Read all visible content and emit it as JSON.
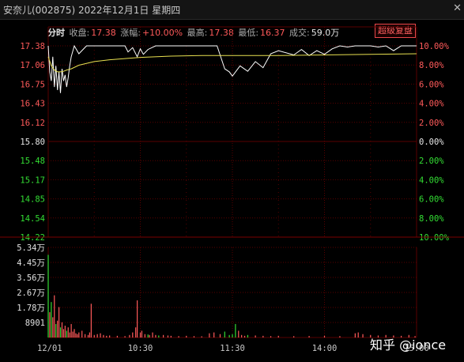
{
  "window": {
    "title": "安奈儿(002875)  2022年12月1日  星期四",
    "close_label": "✕"
  },
  "info": {
    "tab": "分时",
    "close_label": "收盘:",
    "close_value": "17.38",
    "change_label": "涨幅:",
    "change_value": "+10.00%",
    "high_label": "最高:",
    "high_value": "17.38",
    "low_label": "最低:",
    "low_value": "16.37",
    "volume_label": "成交:",
    "volume_value": "59.0万",
    "super_button": "超级复盘"
  },
  "watermark": "知乎 @ionce",
  "colors": {
    "up": "#ff5a5a",
    "down": "#33dd33",
    "flat": "#e6e6e6",
    "price_line": "#ffffff",
    "avg_line": "#e8e050",
    "grid": "#5a0000"
  },
  "chart_data": [
    {
      "type": "line",
      "base_price": 15.8,
      "ylim": [
        14.22,
        17.38
      ],
      "y_ticks_left": [
        "17.38",
        "17.06",
        "16.75",
        "16.43",
        "16.12",
        "15.80",
        "15.48",
        "15.17",
        "14.85",
        "14.54",
        "14.22"
      ],
      "y_ticks_right": [
        "10.00%",
        "8.00%",
        "6.00%",
        "4.00%",
        "2.00%",
        "0.00%",
        "2.00%",
        "4.00%",
        "6.00%",
        "8.00%",
        "10.00%"
      ],
      "x_ticks": [
        "12/01",
        "10:30",
        "11:30",
        "14:00",
        "15:00"
      ],
      "series": [
        {
          "role": "price",
          "x": [
            0,
            1,
            2,
            3,
            4,
            5,
            6,
            7,
            8,
            9,
            10,
            11,
            12,
            13,
            14,
            15,
            17,
            20,
            25,
            30,
            40,
            45,
            50,
            52,
            55,
            58,
            60,
            62,
            65,
            70,
            75,
            80,
            90,
            100,
            110,
            115,
            118,
            120,
            125,
            130,
            135,
            140,
            145,
            150,
            160,
            165,
            170,
            175,
            180,
            185,
            190,
            195,
            200,
            210,
            215,
            220,
            225,
            230,
            235,
            240
          ],
          "values": [
            17.38,
            16.95,
            16.8,
            17.2,
            16.7,
            17.05,
            16.65,
            16.95,
            16.6,
            17.0,
            16.8,
            16.9,
            16.7,
            16.85,
            17.05,
            17.2,
            17.38,
            17.25,
            17.38,
            17.38,
            17.38,
            17.38,
            17.38,
            17.28,
            17.35,
            17.2,
            17.33,
            17.24,
            17.32,
            17.38,
            17.38,
            17.38,
            17.38,
            17.38,
            17.38,
            17.0,
            16.95,
            16.88,
            17.05,
            16.96,
            17.12,
            17.02,
            17.25,
            17.3,
            17.23,
            17.32,
            17.22,
            17.3,
            17.24,
            17.33,
            17.38,
            17.36,
            17.38,
            17.38,
            17.36,
            17.38,
            17.3,
            17.38,
            17.38,
            17.38
          ]
        },
        {
          "role": "average",
          "x": [
            0,
            2,
            4,
            6,
            8,
            10,
            12,
            15,
            20,
            30,
            40,
            60,
            80,
            100,
            120,
            150,
            180,
            210,
            240
          ],
          "values": [
            17.2,
            17.05,
            16.98,
            16.95,
            16.95,
            16.96,
            16.98,
            17.0,
            17.06,
            17.12,
            17.15,
            17.19,
            17.21,
            17.22,
            17.22,
            17.22,
            17.23,
            17.24,
            17.25
          ]
        }
      ]
    },
    {
      "type": "bar",
      "ylim": [
        0,
        53400
      ],
      "y_ticks": [
        "5.34万",
        "4.45万",
        "3.56万",
        "2.67万",
        "1.78万",
        "8901"
      ],
      "bars": [
        {
          "x": 0,
          "v": 49000,
          "c": "down"
        },
        {
          "x": 1,
          "v": 15000,
          "c": "up"
        },
        {
          "x": 2,
          "v": 21000,
          "c": "down"
        },
        {
          "x": 3,
          "v": 12000,
          "c": "up"
        },
        {
          "x": 4,
          "v": 25000,
          "c": "up"
        },
        {
          "x": 5,
          "v": 8000,
          "c": "down"
        },
        {
          "x": 6,
          "v": 10000,
          "c": "up"
        },
        {
          "x": 7,
          "v": 18000,
          "c": "up"
        },
        {
          "x": 8,
          "v": 6000,
          "c": "down"
        },
        {
          "x": 9,
          "v": 9000,
          "c": "up"
        },
        {
          "x": 10,
          "v": 5000,
          "c": "up"
        },
        {
          "x": 11,
          "v": 7000,
          "c": "up"
        },
        {
          "x": 12,
          "v": 4000,
          "c": "down"
        },
        {
          "x": 13,
          "v": 6000,
          "c": "up"
        },
        {
          "x": 14,
          "v": 3000,
          "c": "up"
        },
        {
          "x": 15,
          "v": 8000,
          "c": "up"
        },
        {
          "x": 16,
          "v": 3500,
          "c": "up"
        },
        {
          "x": 17,
          "v": 5000,
          "c": "up"
        },
        {
          "x": 18,
          "v": 2500,
          "c": "up"
        },
        {
          "x": 19,
          "v": 2000,
          "c": "up"
        },
        {
          "x": 20,
          "v": 3000,
          "c": "up"
        },
        {
          "x": 22,
          "v": 4000,
          "c": "up"
        },
        {
          "x": 24,
          "v": 2000,
          "c": "up"
        },
        {
          "x": 26,
          "v": 1500,
          "c": "up"
        },
        {
          "x": 27,
          "v": 3000,
          "c": "up"
        },
        {
          "x": 28,
          "v": 20000,
          "c": "up"
        },
        {
          "x": 30,
          "v": 1500,
          "c": "up"
        },
        {
          "x": 32,
          "v": 2000,
          "c": "up"
        },
        {
          "x": 34,
          "v": 2500,
          "c": "up"
        },
        {
          "x": 36,
          "v": 1500,
          "c": "up"
        },
        {
          "x": 38,
          "v": 1000,
          "c": "up"
        },
        {
          "x": 40,
          "v": 1200,
          "c": "up"
        },
        {
          "x": 45,
          "v": 1000,
          "c": "up"
        },
        {
          "x": 50,
          "v": 800,
          "c": "up"
        },
        {
          "x": 53,
          "v": 1500,
          "c": "up"
        },
        {
          "x": 55,
          "v": 3000,
          "c": "up"
        },
        {
          "x": 57,
          "v": 6000,
          "c": "up"
        },
        {
          "x": 58,
          "v": 22000,
          "c": "up"
        },
        {
          "x": 60,
          "v": 3000,
          "c": "up"
        },
        {
          "x": 61,
          "v": 4000,
          "c": "up"
        },
        {
          "x": 63,
          "v": 2000,
          "c": "up"
        },
        {
          "x": 65,
          "v": 1800,
          "c": "down"
        },
        {
          "x": 66,
          "v": 1500,
          "c": "up"
        },
        {
          "x": 68,
          "v": 3000,
          "c": "up"
        },
        {
          "x": 70,
          "v": 1500,
          "c": "up"
        },
        {
          "x": 72,
          "v": 1200,
          "c": "down"
        },
        {
          "x": 75,
          "v": 1500,
          "c": "up"
        },
        {
          "x": 78,
          "v": 1200,
          "c": "up"
        },
        {
          "x": 80,
          "v": 1000,
          "c": "up"
        },
        {
          "x": 85,
          "v": 800,
          "c": "up"
        },
        {
          "x": 90,
          "v": 1000,
          "c": "up"
        },
        {
          "x": 95,
          "v": 800,
          "c": "up"
        },
        {
          "x": 100,
          "v": 700,
          "c": "up"
        },
        {
          "x": 105,
          "v": 2500,
          "c": "up"
        },
        {
          "x": 108,
          "v": 3000,
          "c": "up"
        },
        {
          "x": 112,
          "v": 2000,
          "c": "up"
        },
        {
          "x": 115,
          "v": 3500,
          "c": "down"
        },
        {
          "x": 118,
          "v": 1500,
          "c": "down"
        },
        {
          "x": 120,
          "v": 2000,
          "c": "down"
        },
        {
          "x": 122,
          "v": 8000,
          "c": "down"
        },
        {
          "x": 124,
          "v": 4000,
          "c": "up"
        },
        {
          "x": 126,
          "v": 1500,
          "c": "up"
        },
        {
          "x": 128,
          "v": 1000,
          "c": "up"
        },
        {
          "x": 130,
          "v": 1500,
          "c": "down"
        },
        {
          "x": 135,
          "v": 1200,
          "c": "up"
        },
        {
          "x": 140,
          "v": 1000,
          "c": "up"
        },
        {
          "x": 145,
          "v": 800,
          "c": "up"
        },
        {
          "x": 150,
          "v": 1000,
          "c": "up"
        },
        {
          "x": 160,
          "v": 800,
          "c": "up"
        },
        {
          "x": 170,
          "v": 900,
          "c": "up"
        },
        {
          "x": 180,
          "v": 1000,
          "c": "up"
        },
        {
          "x": 190,
          "v": 800,
          "c": "up"
        },
        {
          "x": 200,
          "v": 2500,
          "c": "up"
        },
        {
          "x": 202,
          "v": 3000,
          "c": "up"
        },
        {
          "x": 205,
          "v": 2000,
          "c": "up"
        },
        {
          "x": 210,
          "v": 1500,
          "c": "up"
        },
        {
          "x": 215,
          "v": 1200,
          "c": "up"
        },
        {
          "x": 220,
          "v": 1500,
          "c": "up"
        },
        {
          "x": 225,
          "v": 1200,
          "c": "up"
        },
        {
          "x": 230,
          "v": 1000,
          "c": "up"
        },
        {
          "x": 235,
          "v": 1500,
          "c": "up"
        },
        {
          "x": 239,
          "v": 800,
          "c": "up"
        }
      ]
    }
  ]
}
